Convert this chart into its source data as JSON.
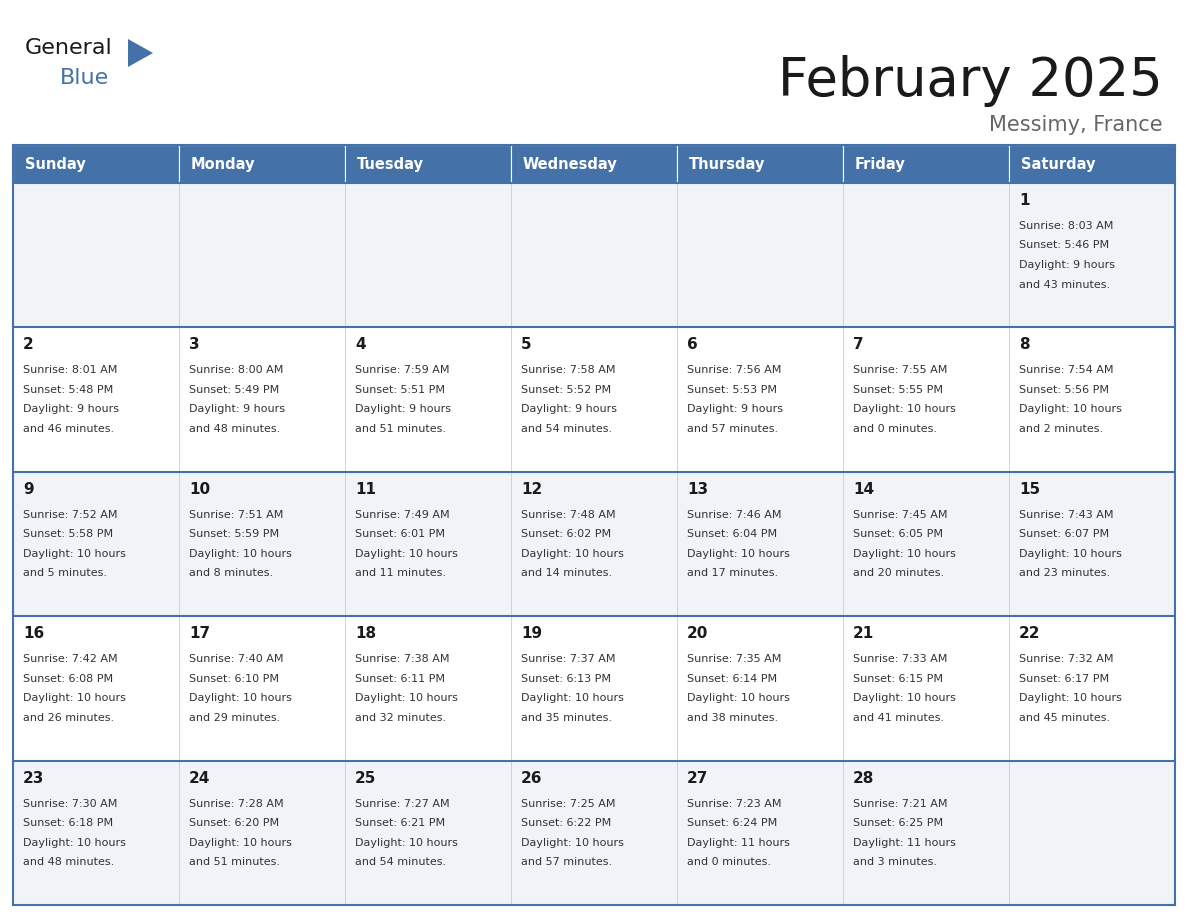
{
  "title": "February 2025",
  "subtitle": "Messimy, France",
  "header_bg": "#4472a8",
  "header_text": "#ffffff",
  "day_names": [
    "Sunday",
    "Monday",
    "Tuesday",
    "Wednesday",
    "Thursday",
    "Friday",
    "Saturday"
  ],
  "cell_bg_light": "#f0f4f8",
  "cell_bg_white": "#ffffff",
  "cell_border": "#4472a8",
  "title_color": "#1a1a1a",
  "subtitle_color": "#666666",
  "day_number_color": "#1a1a1a",
  "info_color": "#333333",
  "calendar": [
    [
      null,
      null,
      null,
      null,
      null,
      null,
      {
        "day": 1,
        "sunrise": "8:03 AM",
        "sunset": "5:46 PM",
        "daylight": "9 hours\nand 43 minutes."
      }
    ],
    [
      {
        "day": 2,
        "sunrise": "8:01 AM",
        "sunset": "5:48 PM",
        "daylight": "9 hours\nand 46 minutes."
      },
      {
        "day": 3,
        "sunrise": "8:00 AM",
        "sunset": "5:49 PM",
        "daylight": "9 hours\nand 48 minutes."
      },
      {
        "day": 4,
        "sunrise": "7:59 AM",
        "sunset": "5:51 PM",
        "daylight": "9 hours\nand 51 minutes."
      },
      {
        "day": 5,
        "sunrise": "7:58 AM",
        "sunset": "5:52 PM",
        "daylight": "9 hours\nand 54 minutes."
      },
      {
        "day": 6,
        "sunrise": "7:56 AM",
        "sunset": "5:53 PM",
        "daylight": "9 hours\nand 57 minutes."
      },
      {
        "day": 7,
        "sunrise": "7:55 AM",
        "sunset": "5:55 PM",
        "daylight": "10 hours\nand 0 minutes."
      },
      {
        "day": 8,
        "sunrise": "7:54 AM",
        "sunset": "5:56 PM",
        "daylight": "10 hours\nand 2 minutes."
      }
    ],
    [
      {
        "day": 9,
        "sunrise": "7:52 AM",
        "sunset": "5:58 PM",
        "daylight": "10 hours\nand 5 minutes."
      },
      {
        "day": 10,
        "sunrise": "7:51 AM",
        "sunset": "5:59 PM",
        "daylight": "10 hours\nand 8 minutes."
      },
      {
        "day": 11,
        "sunrise": "7:49 AM",
        "sunset": "6:01 PM",
        "daylight": "10 hours\nand 11 minutes."
      },
      {
        "day": 12,
        "sunrise": "7:48 AM",
        "sunset": "6:02 PM",
        "daylight": "10 hours\nand 14 minutes."
      },
      {
        "day": 13,
        "sunrise": "7:46 AM",
        "sunset": "6:04 PM",
        "daylight": "10 hours\nand 17 minutes."
      },
      {
        "day": 14,
        "sunrise": "7:45 AM",
        "sunset": "6:05 PM",
        "daylight": "10 hours\nand 20 minutes."
      },
      {
        "day": 15,
        "sunrise": "7:43 AM",
        "sunset": "6:07 PM",
        "daylight": "10 hours\nand 23 minutes."
      }
    ],
    [
      {
        "day": 16,
        "sunrise": "7:42 AM",
        "sunset": "6:08 PM",
        "daylight": "10 hours\nand 26 minutes."
      },
      {
        "day": 17,
        "sunrise": "7:40 AM",
        "sunset": "6:10 PM",
        "daylight": "10 hours\nand 29 minutes."
      },
      {
        "day": 18,
        "sunrise": "7:38 AM",
        "sunset": "6:11 PM",
        "daylight": "10 hours\nand 32 minutes."
      },
      {
        "day": 19,
        "sunrise": "7:37 AM",
        "sunset": "6:13 PM",
        "daylight": "10 hours\nand 35 minutes."
      },
      {
        "day": 20,
        "sunrise": "7:35 AM",
        "sunset": "6:14 PM",
        "daylight": "10 hours\nand 38 minutes."
      },
      {
        "day": 21,
        "sunrise": "7:33 AM",
        "sunset": "6:15 PM",
        "daylight": "10 hours\nand 41 minutes."
      },
      {
        "day": 22,
        "sunrise": "7:32 AM",
        "sunset": "6:17 PM",
        "daylight": "10 hours\nand 45 minutes."
      }
    ],
    [
      {
        "day": 23,
        "sunrise": "7:30 AM",
        "sunset": "6:18 PM",
        "daylight": "10 hours\nand 48 minutes."
      },
      {
        "day": 24,
        "sunrise": "7:28 AM",
        "sunset": "6:20 PM",
        "daylight": "10 hours\nand 51 minutes."
      },
      {
        "day": 25,
        "sunrise": "7:27 AM",
        "sunset": "6:21 PM",
        "daylight": "10 hours\nand 54 minutes."
      },
      {
        "day": 26,
        "sunrise": "7:25 AM",
        "sunset": "6:22 PM",
        "daylight": "10 hours\nand 57 minutes."
      },
      {
        "day": 27,
        "sunrise": "7:23 AM",
        "sunset": "6:24 PM",
        "daylight": "11 hours\nand 0 minutes."
      },
      {
        "day": 28,
        "sunrise": "7:21 AM",
        "sunset": "6:25 PM",
        "daylight": "11 hours\nand 3 minutes."
      },
      null
    ]
  ],
  "fig_width": 11.88,
  "fig_height": 9.18,
  "dpi": 100
}
